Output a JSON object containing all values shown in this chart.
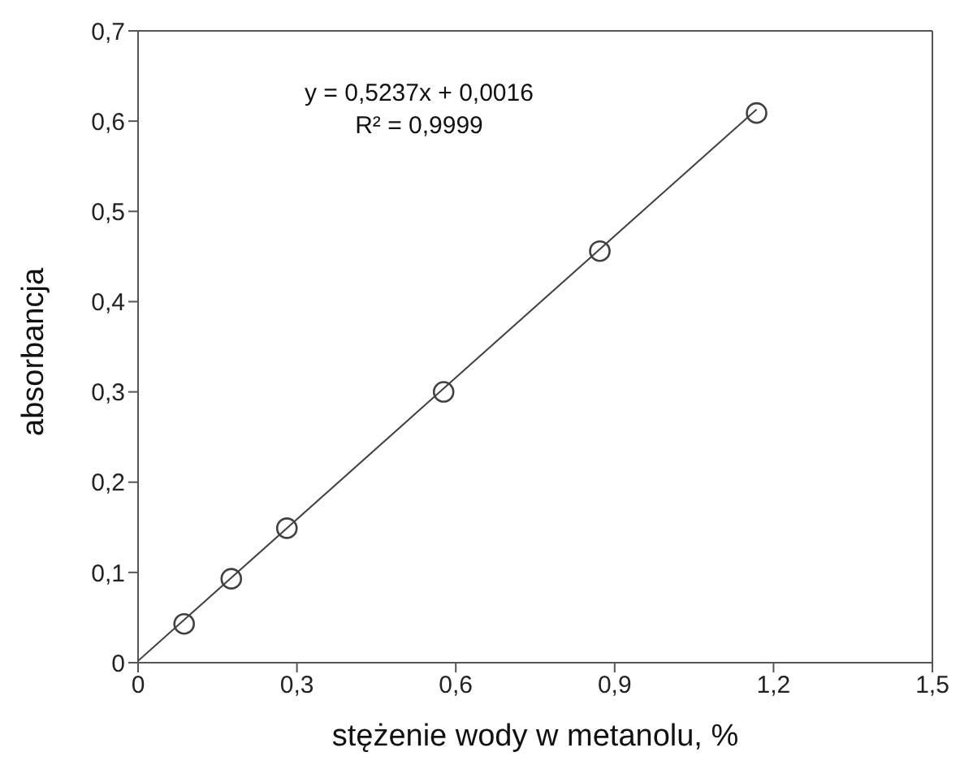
{
  "chart_data": {
    "type": "scatter",
    "xlabel": "stężenie wody w metanolu, %",
    "ylabel": "absorbancja",
    "annotations": [
      "y = 0,5237x + 0,0016",
      "R² = 0,9999"
    ],
    "series": [
      {
        "type": "scatter",
        "color": "#404040",
        "marker": "circle",
        "x": [
          0.087,
          0.176,
          0.281,
          0.577,
          0.872,
          1.168
        ],
        "values": [
          0.043,
          0.093,
          0.149,
          0.3,
          0.456,
          0.609
        ]
      },
      {
        "type": "line",
        "color": "#404040",
        "marker": "none",
        "x": [
          0,
          1.168
        ],
        "values": [
          0.002,
          0.613
        ]
      }
    ],
    "xlim": [
      0,
      1.5
    ],
    "xticks": [
      0,
      {
        "value": 0.3,
        "label": "0,3"
      },
      {
        "value": 0.6,
        "label": "0,6"
      },
      {
        "value": 0.9,
        "label": "0,9"
      },
      {
        "value": 1.2,
        "label": "1,2"
      },
      {
        "value": 1.5,
        "label": "1,5"
      }
    ],
    "ylim": [
      0,
      0.7
    ],
    "yticks": [
      0,
      {
        "value": 0.1,
        "label": "0,1"
      },
      {
        "value": 0.2,
        "label": "0,2"
      },
      {
        "value": 0.3,
        "label": "0,3"
      },
      {
        "value": 0.4,
        "label": "0,4"
      },
      {
        "value": 0.5,
        "label": "0,5"
      },
      {
        "value": 0.6,
        "label": "0,6"
      },
      {
        "value": 0.7,
        "label": "0,7"
      }
    ],
    "grid": false,
    "legend": false
  }
}
